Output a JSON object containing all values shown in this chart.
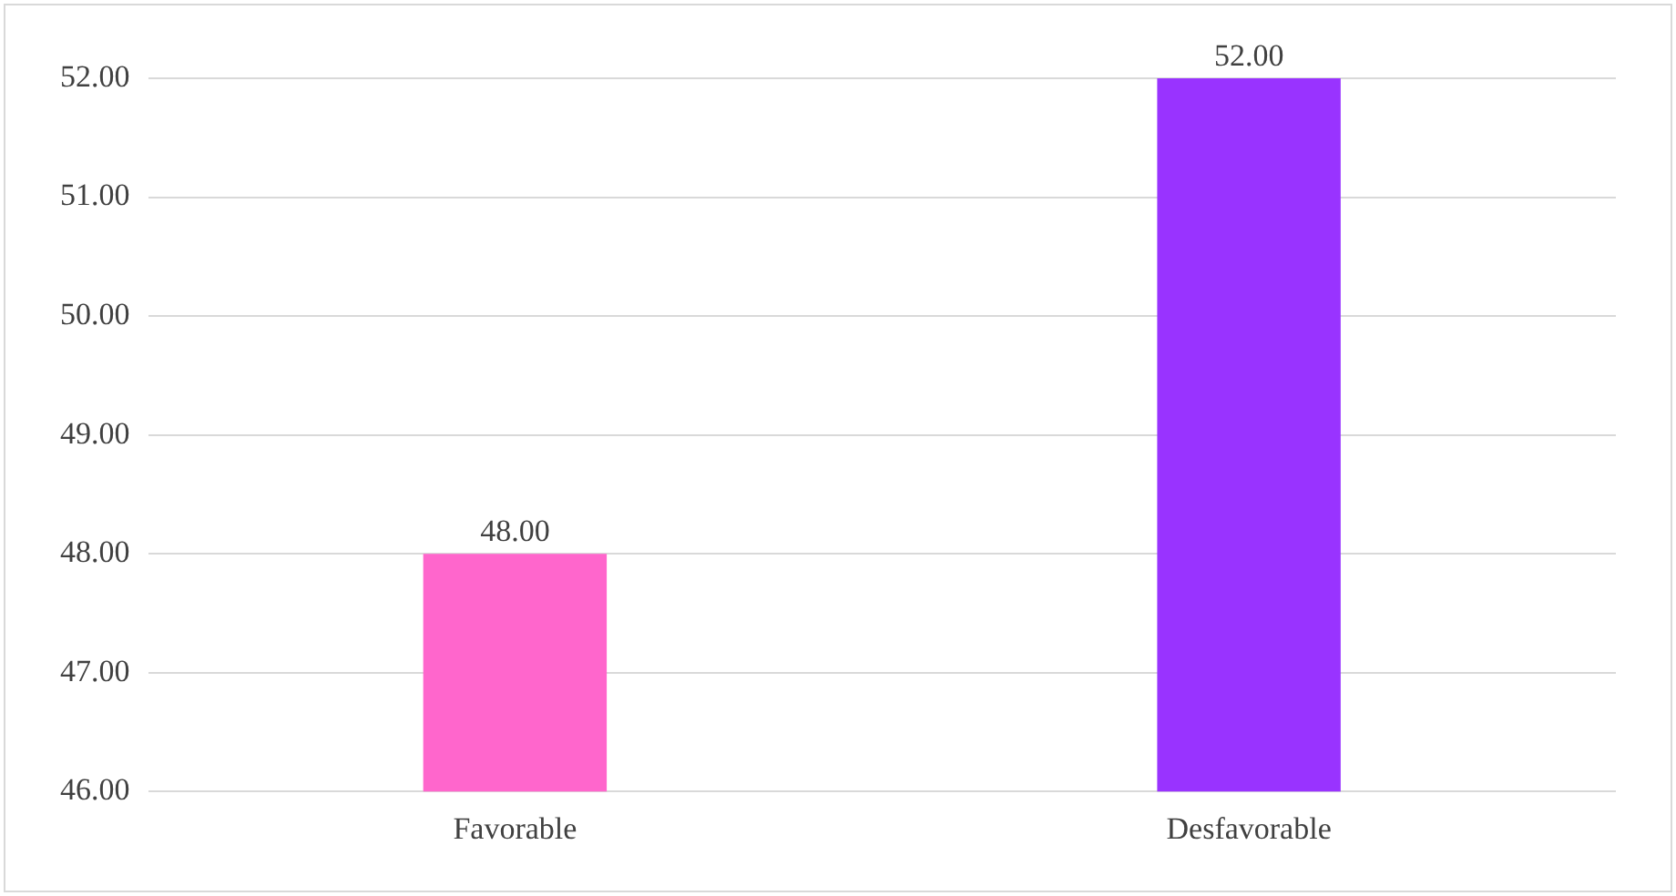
{
  "chart_data": {
    "type": "bar",
    "categories": [
      "Favorable",
      "Desfavorable"
    ],
    "values": [
      48,
      52
    ],
    "colors": [
      "#ff66cc",
      "#9933ff"
    ],
    "value_labels": [
      "48.00",
      "52.00"
    ],
    "ylim": [
      46,
      52
    ],
    "yticks": [
      {
        "value": 46,
        "label": "46.00"
      },
      {
        "value": 47,
        "label": "47.00"
      },
      {
        "value": 48,
        "label": "48.00"
      },
      {
        "value": 49,
        "label": "49.00"
      },
      {
        "value": 50,
        "label": "50.00"
      },
      {
        "value": 51,
        "label": "51.00"
      },
      {
        "value": 52,
        "label": "52.00"
      }
    ],
    "grid": "y",
    "legend": false
  }
}
